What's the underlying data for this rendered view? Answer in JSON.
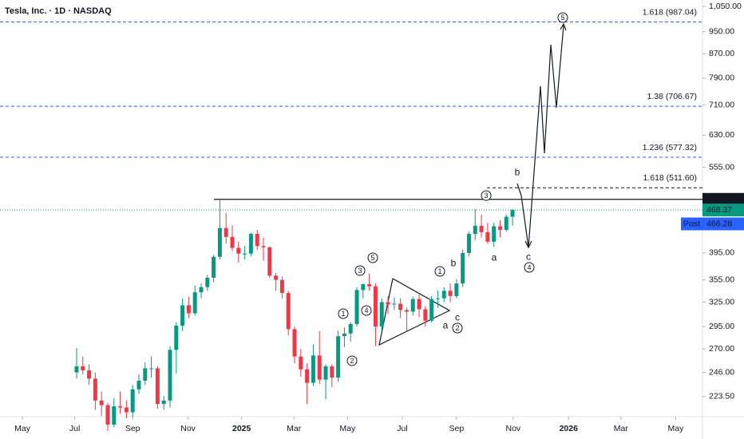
{
  "chart_data": {
    "type": "candlestick",
    "title": "Tesla, Inc. · 1D · NASDAQ",
    "categories": [
      null,
      null,
      null,
      null,
      null,
      null,
      null,
      null,
      null,
      null,
      null,
      null,
      null,
      null,
      null,
      null,
      null,
      null,
      null,
      null,
      null,
      null,
      null,
      null,
      null,
      null,
      null,
      null,
      null,
      null,
      null,
      null,
      null,
      null,
      null,
      null,
      null,
      null,
      null,
      null,
      null,
      null,
      null,
      null,
      null,
      null,
      null,
      null,
      null,
      null,
      null,
      null,
      null,
      null,
      null,
      null,
      null,
      null,
      null,
      null,
      null,
      null,
      null,
      null,
      null,
      null,
      null,
      null,
      null,
      null,
      null
    ],
    "open": [
      246,
      252,
      248,
      240,
      220,
      216,
      200,
      215,
      214,
      210,
      230,
      238,
      250,
      250,
      217,
      220,
      269,
      296,
      321,
      311,
      338,
      345,
      358,
      389,
      436,
      421,
      403,
      394,
      394,
      426,
      406,
      404,
      361,
      355,
      337,
      292,
      262,
      249,
      236,
      263,
      239,
      252,
      241,
      284,
      287,
      298,
      341,
      349,
      346,
      295,
      325,
      322,
      323,
      315,
      313,
      329,
      316,
      302,
      330,
      330,
      340,
      333,
      350,
      395,
      426,
      440,
      429,
      413,
      439,
      433,
      456
    ],
    "high": [
      271,
      262,
      254,
      246,
      228,
      218,
      222,
      228,
      220,
      234,
      244,
      256,
      262,
      252,
      224,
      273,
      300,
      330,
      332,
      347,
      350,
      362,
      392,
      488,
      463,
      441,
      413,
      406,
      428,
      433,
      420,
      405,
      365,
      360,
      340,
      295,
      270,
      255,
      275,
      290,
      254,
      254,
      290,
      294,
      300,
      345,
      350,
      364,
      350,
      330,
      333,
      331,
      330,
      318,
      332,
      335,
      320,
      333,
      340,
      345,
      350,
      356,
      400,
      430,
      470,
      460,
      445,
      445,
      450,
      460,
      470
    ],
    "low": [
      240,
      244,
      234,
      212,
      207,
      195,
      198,
      209,
      205,
      206,
      226,
      234,
      241,
      213,
      212,
      214,
      245,
      290,
      305,
      308,
      330,
      340,
      352,
      385,
      410,
      398,
      380,
      385,
      390,
      400,
      383,
      358,
      340,
      330,
      285,
      255,
      242,
      217,
      233,
      235,
      221,
      232,
      237,
      272,
      278,
      295,
      330,
      340,
      273,
      290,
      310,
      315,
      305,
      290,
      308,
      306,
      295,
      300,
      318,
      325,
      325,
      330,
      345,
      390,
      415,
      420,
      410,
      405,
      420,
      430,
      440
    ],
    "close": [
      252,
      248,
      240,
      220,
      216,
      200,
      215,
      214,
      210,
      230,
      238,
      250,
      250,
      217,
      220,
      269,
      296,
      321,
      311,
      338,
      345,
      358,
      389,
      436,
      421,
      403,
      394,
      394,
      426,
      406,
      404,
      361,
      355,
      337,
      292,
      262,
      249,
      236,
      263,
      239,
      252,
      241,
      284,
      287,
      298,
      341,
      349,
      346,
      295,
      325,
      322,
      323,
      315,
      313,
      329,
      316,
      302,
      329,
      330,
      340,
      333,
      350,
      395,
      426,
      440,
      429,
      413,
      439,
      433,
      456,
      468.37
    ],
    "up_color": "#089981",
    "down_color": "#f23645",
    "log_scale": true,
    "ylim": [
      206.4,
      1077
    ],
    "yticks": [
      {
        "value": 1050,
        "label": "1,050.00"
      },
      {
        "value": 950,
        "label": "950.00"
      },
      {
        "value": 870,
        "label": "870.00"
      },
      {
        "value": 790,
        "label": "790.00"
      },
      {
        "value": 710,
        "label": "710.00"
      },
      {
        "value": 630,
        "label": "630.00"
      },
      {
        "value": 555,
        "label": "555.00"
      },
      {
        "value": 395,
        "label": "395.00"
      },
      {
        "value": 355,
        "label": "355.00"
      },
      {
        "value": 325,
        "label": "325.00"
      },
      {
        "value": 295,
        "label": "295.00"
      },
      {
        "value": 270,
        "label": "270.00"
      },
      {
        "value": 246,
        "label": "246.00"
      },
      {
        "value": 223.5,
        "label": "223.50"
      }
    ],
    "xlim": [
      -12.3,
      100.5
    ],
    "xticks": [
      {
        "value": -8.7,
        "label": "May"
      },
      {
        "value": -0.3,
        "label": "Jul"
      },
      {
        "value": 9,
        "label": "Sep"
      },
      {
        "value": 17.9,
        "label": "Nov"
      },
      {
        "value": 26.5,
        "label": "2025"
      },
      {
        "value": 34.9,
        "label": "Mar"
      },
      {
        "value": 43.5,
        "label": "May"
      },
      {
        "value": 52.3,
        "label": "Jul"
      },
      {
        "value": 61,
        "label": "Sep"
      },
      {
        "value": 70.1,
        "label": "Nov"
      },
      {
        "value": 79,
        "label": "2026"
      },
      {
        "value": 87.4,
        "label": "Mar"
      },
      {
        "value": 96.2,
        "label": "May"
      }
    ],
    "fib_levels": [
      {
        "label": "1.618 (987.04)",
        "value": 987.04,
        "color": "#2962ff"
      },
      {
        "label": "1.38 (706.67)",
        "value": 706.67,
        "color": "#2962ff"
      },
      {
        "label": "1.236 (577.32)",
        "value": 577.32,
        "color": "#2962ff"
      },
      {
        "label": "1.618 (511.60)",
        "value": 511.6,
        "color": "#131722"
      }
    ],
    "resistance": {
      "value": 488.54,
      "label": "488.54"
    },
    "post_market": {
      "name": "Post",
      "value": 466.28,
      "label": "466.28"
    },
    "wave_labels": [
      "3",
      "b",
      "4",
      "c",
      "a",
      "5",
      "1",
      "b",
      "c",
      "2",
      "a",
      "5",
      "3",
      "4",
      "1",
      "2"
    ]
  }
}
